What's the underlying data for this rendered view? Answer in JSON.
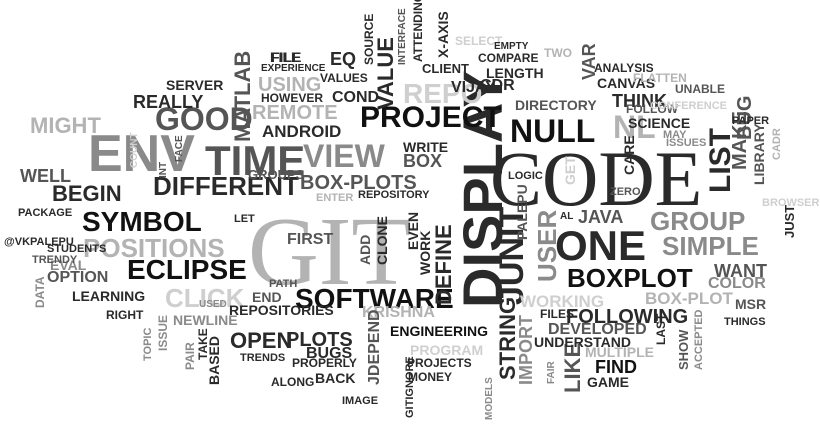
{
  "words": [
    "GIT",
    "CODE",
    "DISPLAY",
    "ENV",
    "TIME",
    "PROJECT",
    "NULL",
    "VIEW",
    "GOOD",
    "ONE",
    "SYMBOL",
    "ECLIPSE",
    "DIFFERENT",
    "BEGIN",
    "POSITIONS",
    "SOFTWARE",
    "BOXPLOT",
    "JUNIT",
    "GROUP",
    "NL",
    "LIST",
    "SIMPLE",
    "REPO",
    "CLICK",
    "BOX-PLOTS",
    "JAVA",
    "MIGHT",
    "STRING",
    "USER",
    "MAKE",
    "DEFINE",
    "USING",
    "MATLAB",
    "REALLY",
    "ANDROID",
    "REMOTE",
    "WELL",
    "WORKING",
    "BOX-PLOT",
    "KRISHNA",
    "OPEN",
    "PLOTS",
    "BUGS",
    "FOLLOWING",
    "DEVELOPED",
    "FIND",
    "GAME",
    "LIKE",
    "IMPORT",
    "VALUE",
    "EQ",
    "COND",
    "VIJAY",
    "CDR",
    "DIRECTORY",
    "THINK",
    "SCIENCE",
    "LIBRARY",
    "BUG",
    "CARE",
    "WANT",
    "COLOR",
    "MSR",
    "FIRST",
    "CLONE",
    "ADD",
    "EVEN",
    "WORK",
    "PALEPU",
    "BOX",
    "WRITE",
    "REPOSITORY",
    "GROUPS",
    "LOGIC",
    "GET",
    "ZERO",
    "ENGINEERING",
    "REPOSITORIES",
    "PATH",
    "END",
    "LEARNING",
    "OPTION",
    "EVAL",
    "DATA",
    "STUDENTS",
    "TRENDY",
    "PACKAGE",
    "@VKPALEPU",
    "COUNT",
    "FACE",
    "INT",
    "SERVER",
    "HOWEVER",
    "EXPERIENCE",
    "FILE",
    "VALUES",
    "SOURCE",
    "INTERFACE",
    "ATTENDING",
    "X-AXIS",
    "CLIENT",
    "SELECT",
    "EMPTY",
    "TWO",
    "COMPARE",
    "LENGTH",
    "VAR",
    "ANALYSIS",
    "CANVAS",
    "FLATTEN",
    "UNABLE",
    "FOLLOW",
    "CONFERENCE",
    "PAPER",
    "MAY",
    "ISSUES",
    "CADR",
    "BROWSER",
    "JUST",
    "THINGS",
    "SHOW",
    "ACCEPTED",
    "LAST",
    "MULTIPLE",
    "UNDERSTAND",
    "FILES",
    "PROGRAM",
    "PROJECTS",
    "MONEY",
    "GITIGNORE",
    "MODELS",
    "FAIR",
    "IMAGE",
    "BACK",
    "PROPERLY",
    "ALONG",
    "TRENDS",
    "BASED",
    "PAIR",
    "TAKE",
    "TOPIC",
    "ISSUE",
    "RIGHT",
    "NEWLINE",
    "JDEPEND",
    "USED",
    "ENTER",
    "LET",
    "AL",
    "FILE"
  ]
}
